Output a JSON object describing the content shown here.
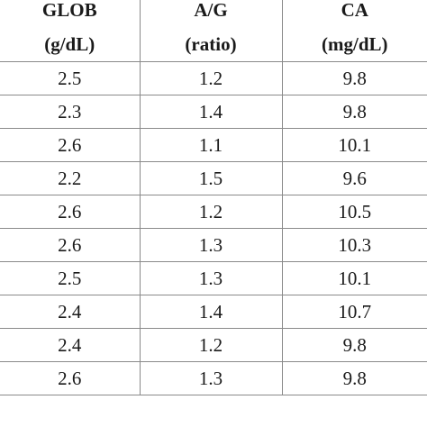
{
  "table": {
    "headers": [
      {
        "name": "GLOB",
        "unit": "(g/dL)"
      },
      {
        "name": "A/G",
        "unit": "(ratio)"
      },
      {
        "name": "CA",
        "unit": "(mg/dL)"
      }
    ],
    "rows": [
      [
        "2.5",
        "1.2",
        "9.8"
      ],
      [
        "2.3",
        "1.4",
        "9.8"
      ],
      [
        "2.6",
        "1.1",
        "10.1"
      ],
      [
        "2.2",
        "1.5",
        "9.6"
      ],
      [
        "2.6",
        "1.2",
        "10.5"
      ],
      [
        "2.6",
        "1.3",
        "10.3"
      ],
      [
        "2.5",
        "1.3",
        "10.1"
      ],
      [
        "2.4",
        "1.4",
        "10.7"
      ],
      [
        "2.4",
        "1.2",
        "9.8"
      ],
      [
        "2.6",
        "1.3",
        "9.8"
      ]
    ]
  }
}
